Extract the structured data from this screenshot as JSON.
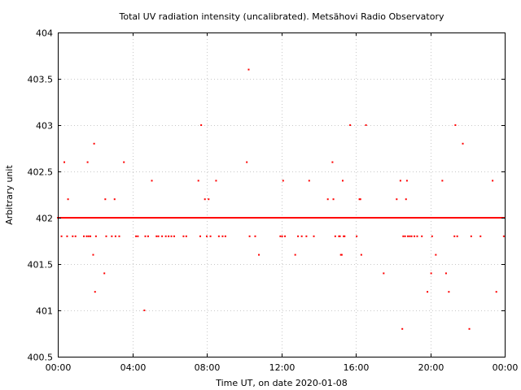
{
  "chart_data": {
    "type": "scatter",
    "title": "Total UV radiation intensity (uncalibrated). Metsähovi Radio Observatory",
    "xlabel": "Time UT, on date 2020-01-08",
    "ylabel": "Arbitrary unit",
    "xlim": [
      0,
      24
    ],
    "ylim": [
      400.5,
      404
    ],
    "x_unit": "hours",
    "xticks": [
      {
        "value": 0,
        "label": "00:00"
      },
      {
        "value": 4,
        "label": "04:00"
      },
      {
        "value": 8,
        "label": "08:00"
      },
      {
        "value": 12,
        "label": "12:00"
      },
      {
        "value": 16,
        "label": "16:00"
      },
      {
        "value": 20,
        "label": "20:00"
      },
      {
        "value": 24,
        "label": "00:00"
      }
    ],
    "yticks": [
      {
        "value": 400.5,
        "label": "400.5"
      },
      {
        "value": 401,
        "label": "401"
      },
      {
        "value": 401.5,
        "label": "401.5"
      },
      {
        "value": 402,
        "label": "402"
      },
      {
        "value": 402.5,
        "label": "402.5"
      },
      {
        "value": 403,
        "label": "403"
      },
      {
        "value": 403.5,
        "label": "403.5"
      },
      {
        "value": 404,
        "label": "404"
      }
    ],
    "grid": true,
    "marker_color": "#ff0000",
    "baseline": {
      "y": 402,
      "x_from": 0,
      "x_to": 24,
      "step": 0.0333
    },
    "points": [
      [
        0.2,
        401.8
      ],
      [
        0.35,
        402.6
      ],
      [
        0.5,
        401.8
      ],
      [
        0.55,
        402.2
      ],
      [
        0.8,
        401.8
      ],
      [
        0.95,
        401.8
      ],
      [
        1.4,
        401.8
      ],
      [
        1.55,
        401.8
      ],
      [
        1.6,
        402.6
      ],
      [
        1.65,
        401.8
      ],
      [
        1.75,
        401.8
      ],
      [
        1.9,
        401.6
      ],
      [
        1.95,
        402.8
      ],
      [
        2.0,
        401.2
      ],
      [
        2.05,
        401.8
      ],
      [
        2.5,
        401.4
      ],
      [
        2.55,
        402.2
      ],
      [
        2.6,
        401.8
      ],
      [
        2.9,
        401.8
      ],
      [
        3.05,
        402.2
      ],
      [
        3.1,
        401.8
      ],
      [
        3.3,
        401.8
      ],
      [
        3.55,
        402.6
      ],
      [
        4.2,
        401.8
      ],
      [
        4.3,
        401.8
      ],
      [
        4.65,
        401.0
      ],
      [
        4.7,
        401.8
      ],
      [
        4.85,
        401.8
      ],
      [
        5.05,
        402.4
      ],
      [
        5.3,
        401.8
      ],
      [
        5.4,
        401.8
      ],
      [
        5.6,
        401.8
      ],
      [
        5.8,
        401.8
      ],
      [
        5.95,
        401.8
      ],
      [
        6.1,
        401.8
      ],
      [
        6.25,
        401.8
      ],
      [
        6.75,
        401.8
      ],
      [
        6.9,
        401.8
      ],
      [
        7.55,
        402.4
      ],
      [
        7.65,
        401.8
      ],
      [
        7.7,
        403.0
      ],
      [
        7.9,
        402.2
      ],
      [
        8.0,
        401.8
      ],
      [
        8.1,
        402.2
      ],
      [
        8.2,
        401.8
      ],
      [
        8.5,
        402.4
      ],
      [
        8.65,
        401.8
      ],
      [
        8.85,
        401.8
      ],
      [
        9.0,
        401.8
      ],
      [
        10.15,
        402.6
      ],
      [
        10.25,
        403.6
      ],
      [
        10.3,
        401.8
      ],
      [
        10.6,
        401.8
      ],
      [
        10.8,
        401.6
      ],
      [
        11.95,
        401.8
      ],
      [
        12.05,
        401.8
      ],
      [
        12.1,
        402.4
      ],
      [
        12.2,
        401.8
      ],
      [
        12.75,
        401.6
      ],
      [
        12.9,
        401.8
      ],
      [
        13.1,
        401.8
      ],
      [
        13.35,
        401.8
      ],
      [
        13.5,
        402.4
      ],
      [
        13.75,
        401.8
      ],
      [
        14.5,
        402.2
      ],
      [
        14.75,
        402.6
      ],
      [
        14.8,
        402.2
      ],
      [
        14.9,
        401.8
      ],
      [
        15.1,
        401.8
      ],
      [
        15.15,
        401.8
      ],
      [
        15.2,
        401.6
      ],
      [
        15.25,
        401.6
      ],
      [
        15.3,
        402.4
      ],
      [
        15.35,
        401.8
      ],
      [
        15.4,
        401.8
      ],
      [
        15.7,
        403.0
      ],
      [
        16.05,
        401.8
      ],
      [
        16.2,
        402.2
      ],
      [
        16.25,
        402.2
      ],
      [
        16.3,
        401.6
      ],
      [
        16.55,
        403.0
      ],
      [
        17.5,
        401.4
      ],
      [
        18.2,
        402.2
      ],
      [
        18.4,
        402.4
      ],
      [
        18.5,
        400.8
      ],
      [
        18.55,
        401.8
      ],
      [
        18.65,
        401.8
      ],
      [
        18.7,
        402.2
      ],
      [
        18.75,
        402.4
      ],
      [
        18.8,
        401.8
      ],
      [
        18.9,
        401.8
      ],
      [
        19.0,
        401.8
      ],
      [
        19.15,
        401.8
      ],
      [
        19.3,
        401.8
      ],
      [
        19.55,
        401.8
      ],
      [
        19.85,
        401.2
      ],
      [
        20.05,
        401.4
      ],
      [
        20.1,
        401.8
      ],
      [
        20.3,
        401.6
      ],
      [
        20.65,
        402.4
      ],
      [
        20.85,
        401.4
      ],
      [
        21.0,
        401.2
      ],
      [
        21.3,
        401.8
      ],
      [
        21.35,
        403.0
      ],
      [
        21.45,
        401.8
      ],
      [
        21.75,
        402.8
      ],
      [
        22.1,
        400.8
      ],
      [
        22.2,
        401.8
      ],
      [
        22.7,
        401.8
      ],
      [
        23.35,
        402.4
      ],
      [
        23.55,
        401.2
      ],
      [
        23.95,
        401.8
      ]
    ]
  }
}
